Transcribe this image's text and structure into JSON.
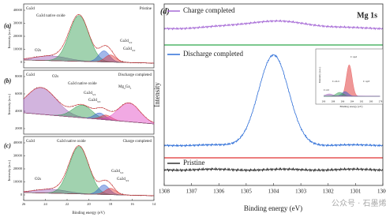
{
  "figure": {
    "panels": [
      {
        "letter": "(a)",
        "y_label": "Intensity (a.u.)",
        "y_ticks": [
          "40000",
          "30000",
          "20000",
          "10000",
          "0"
        ],
        "texts": [
          "Ga3d",
          "Pristine",
          "Ga3d native oxide",
          "O2s"
        ],
        "peaks": [
          [
            "Ga3d",
            "5/2"
          ],
          [
            "Ga3d",
            "3/2"
          ]
        ]
      },
      {
        "letter": "(b)",
        "y_label": "Intensity (a.u.)",
        "y_ticks": [
          "8000",
          "6000",
          "4000",
          "2000"
        ],
        "texts": [
          "Ga3d",
          "O2s",
          "Discharge completed",
          "Ga3d native oxide"
        ],
        "peaks": [
          [
            "Ga3d",
            "5/2"
          ],
          [
            "Ga3d",
            "3/2"
          ],
          [
            "Mg",
            "2",
            "Ga",
            "5"
          ]
        ]
      },
      {
        "letter": "(c)",
        "y_label": "Intensity (a.u.)",
        "y_ticks": [
          "40000",
          "30000",
          "20000",
          "10000",
          "0"
        ],
        "texts": [
          "Ga3d",
          "Ga3d native oxide",
          "Charge completed",
          "O2s"
        ],
        "peaks": [
          [
            "Ga3d",
            "5/2"
          ],
          [
            "Ga3d",
            "3/2"
          ]
        ]
      }
    ],
    "left_x_ticks": [
      "26",
      "24",
      "22",
      "20",
      "18",
      "16",
      "14"
    ],
    "left_x_label": "Binding energy (eV)",
    "d": {
      "letter": "(d)",
      "title": "Mg 1s",
      "legend": [
        "Charge completed",
        "Discharge completed",
        "Pristine"
      ],
      "y_label": "Intensity",
      "x_label": "Binding energy (eV)",
      "x_ticks": [
        "1308",
        "1307",
        "1306",
        "1305",
        "1304",
        "1303",
        "1302",
        "1301",
        "1300"
      ],
      "inset": {
        "y_label": "Intensity (a.u.)",
        "x_label": "Binding energy (eV)",
        "x_ticks": [
          "290",
          "288",
          "286",
          "284",
          "282",
          "280",
          "278"
        ],
        "peaks": [
          "C=O",
          "C-O-C",
          "C sp3",
          "C sp2"
        ]
      }
    },
    "watermark": "公众号 · 石墨烯研究"
  }
}
